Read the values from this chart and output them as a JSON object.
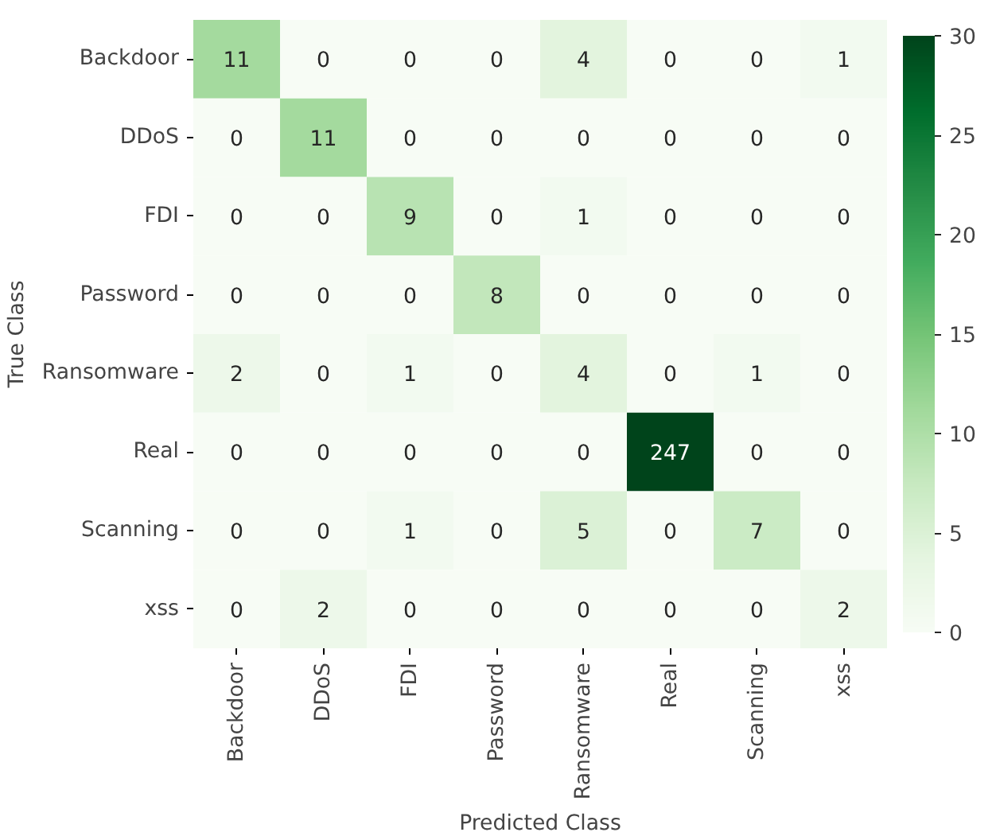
{
  "chart_data": {
    "type": "heatmap",
    "xlabel": "Predicted Class",
    "ylabel": "True Class",
    "categories": [
      "Backdoor",
      "DDoS",
      "FDI",
      "Password",
      "Ransomware",
      "Real",
      "Scanning",
      "xss"
    ],
    "y_categories": [
      "Backdoor",
      "DDoS",
      "FDI",
      "Password",
      "Ransomware",
      "Real",
      "Scanning",
      "xss"
    ],
    "cells": [
      [
        11,
        0,
        0,
        0,
        4,
        0,
        0,
        1
      ],
      [
        0,
        11,
        0,
        0,
        0,
        0,
        0,
        0
      ],
      [
        0,
        0,
        9,
        0,
        1,
        0,
        0,
        0
      ],
      [
        0,
        0,
        0,
        8,
        0,
        0,
        0,
        0
      ],
      [
        2,
        0,
        1,
        0,
        4,
        0,
        1,
        0
      ],
      [
        0,
        0,
        0,
        0,
        0,
        247,
        0,
        0
      ],
      [
        0,
        0,
        1,
        0,
        5,
        0,
        7,
        0
      ],
      [
        0,
        2,
        0,
        0,
        0,
        0,
        0,
        2
      ]
    ],
    "clim": [
      0,
      30
    ],
    "cticks": [
      0,
      5,
      10,
      15,
      20,
      25,
      30
    ],
    "data_labels": true
  }
}
